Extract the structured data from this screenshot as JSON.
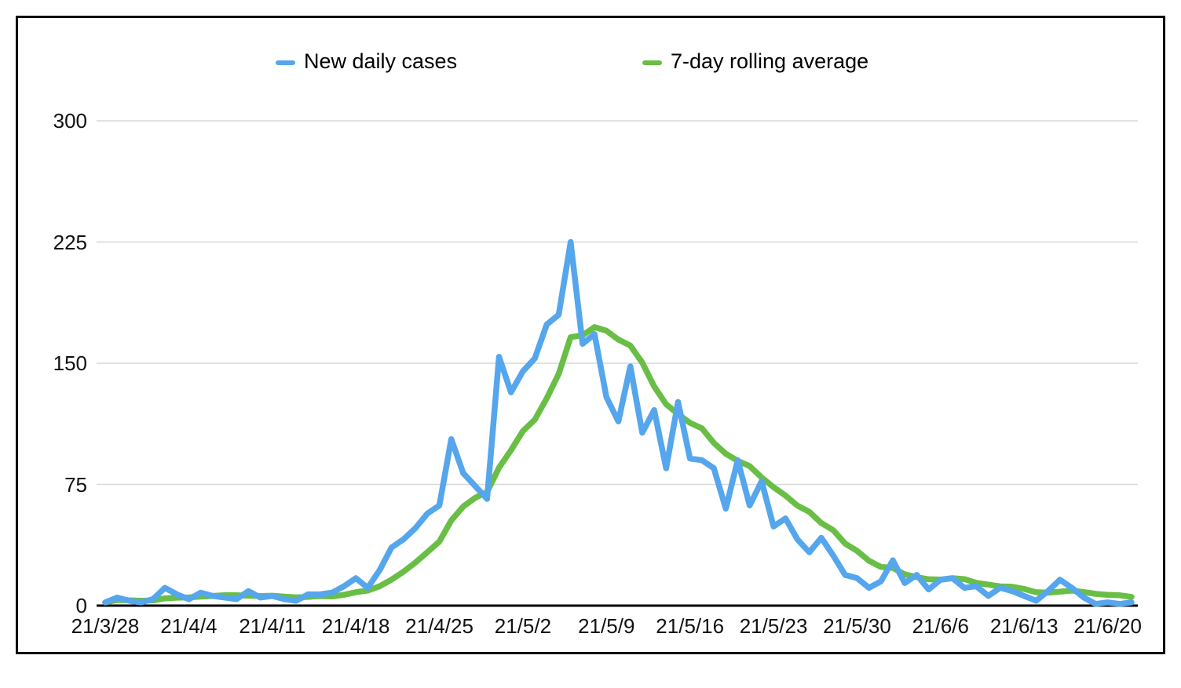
{
  "chart_data": {
    "type": "line",
    "title": "",
    "xlabel": "",
    "ylabel": "",
    "ylim": [
      0,
      300
    ],
    "y_ticks": [
      0,
      75,
      150,
      225,
      300
    ],
    "grid": "horizontal",
    "legend_position": "top",
    "x_tick_labels": [
      "21/3/28",
      "21/4/4",
      "21/4/11",
      "21/4/18",
      "21/4/25",
      "21/5/2",
      "21/5/9",
      "21/5/16",
      "21/5/23",
      "21/5/30",
      "21/6/6",
      "21/6/13",
      "21/6/20"
    ],
    "dates": [
      "21/3/28",
      "21/3/29",
      "21/3/30",
      "21/3/31",
      "21/4/1",
      "21/4/2",
      "21/4/3",
      "21/4/4",
      "21/4/5",
      "21/4/6",
      "21/4/7",
      "21/4/8",
      "21/4/9",
      "21/4/10",
      "21/4/11",
      "21/4/12",
      "21/4/13",
      "21/4/14",
      "21/4/15",
      "21/4/16",
      "21/4/17",
      "21/4/18",
      "21/4/19",
      "21/4/20",
      "21/4/21",
      "21/4/22",
      "21/4/23",
      "21/4/24",
      "21/4/25",
      "21/4/26",
      "21/4/27",
      "21/4/28",
      "21/4/29",
      "21/4/30",
      "21/5/1",
      "21/5/2",
      "21/5/3",
      "21/5/4",
      "21/5/5",
      "21/5/6",
      "21/5/7",
      "21/5/8",
      "21/5/9",
      "21/5/10",
      "21/5/11",
      "21/5/12",
      "21/5/13",
      "21/5/14",
      "21/5/15",
      "21/5/16",
      "21/5/17",
      "21/5/18",
      "21/5/19",
      "21/5/20",
      "21/5/21",
      "21/5/22",
      "21/5/23",
      "21/5/24",
      "21/5/25",
      "21/5/26",
      "21/5/27",
      "21/5/28",
      "21/5/29",
      "21/5/30",
      "21/5/31",
      "21/6/1",
      "21/6/2",
      "21/6/3",
      "21/6/4",
      "21/6/5",
      "21/6/6",
      "21/6/7",
      "21/6/8",
      "21/6/9",
      "21/6/10",
      "21/6/11",
      "21/6/12",
      "21/6/13",
      "21/6/14",
      "21/6/15",
      "21/6/16",
      "21/6/17",
      "21/6/18",
      "21/6/19",
      "21/6/20",
      "21/6/21",
      "21/6/22"
    ],
    "series": [
      {
        "name": "New daily cases",
        "color": "#55a6ec",
        "values": [
          2,
          5,
          3,
          2,
          4,
          11,
          7,
          4,
          8,
          6,
          5,
          4,
          9,
          5,
          6,
          4,
          3,
          7,
          7,
          8,
          12,
          17,
          11,
          22,
          36,
          41,
          48,
          57,
          62,
          103,
          82,
          74,
          66,
          154,
          132,
          145,
          153,
          174,
          180,
          225,
          162,
          168,
          129,
          114,
          148,
          107,
          121,
          85,
          126,
          91,
          90,
          85,
          60,
          90,
          62,
          77,
          49,
          54,
          41,
          33,
          42,
          31,
          19,
          17,
          11,
          15,
          28,
          14,
          19,
          10,
          16,
          17,
          11,
          12,
          6,
          11,
          9,
          6,
          3,
          9,
          16,
          11,
          5,
          1,
          2,
          1,
          2
        ]
      },
      {
        "name": "7-day rolling average",
        "color": "#69be46",
        "values": [
          2,
          3.5,
          3.3,
          3,
          3.2,
          4.5,
          4.9,
          5.1,
          5.6,
          6,
          6.4,
          6.4,
          6.1,
          5.9,
          6.1,
          5.6,
          5.1,
          5.4,
          5.9,
          5.7,
          6.7,
          8.3,
          9.3,
          12,
          16.1,
          21,
          26.7,
          33.1,
          39.6,
          52.7,
          61.3,
          66.7,
          70.3,
          85.4,
          96.1,
          108,
          115.1,
          128.3,
          143.4,
          166.1,
          167.3,
          172.4,
          170.1,
          164.6,
          160.9,
          150.4,
          135.6,
          124.6,
          118.6,
          113.1,
          109.7,
          100.7,
          94,
          89.6,
          86.3,
          79.3,
          73.3,
          68.1,
          61.9,
          58,
          51.1,
          46.7,
          38.4,
          33.9,
          27.7,
          24,
          23.3,
          19.3,
          17.6,
          16.3,
          16.1,
          17,
          16.4,
          14.1,
          13,
          11.9,
          11.7,
          10.3,
          8.3,
          8,
          8.6,
          9.3,
          8.4,
          7.3,
          6.7,
          6.4,
          5.4
        ]
      }
    ],
    "colors": {
      "axis": "#000000",
      "gridline": "#d8d8d8",
      "background": "#ffffff",
      "text": "#111111"
    }
  }
}
